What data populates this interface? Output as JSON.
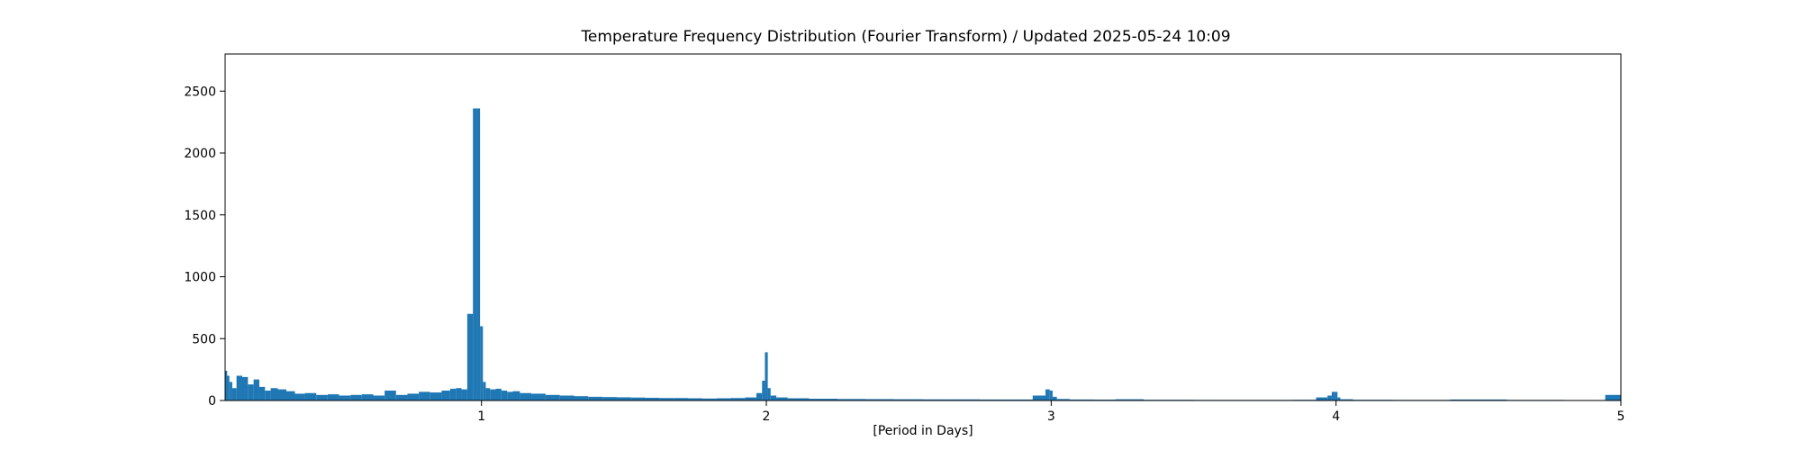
{
  "chart_data": {
    "type": "bar",
    "title": "Temperature Frequency Distribution (Fourier Transform) / Updated 2025-05-24 10:09",
    "xlabel": "[Period in Days]",
    "ylabel": "",
    "xlim": [
      0.1,
      5.0
    ],
    "ylim": [
      0,
      2800
    ],
    "x_ticks": [
      "1",
      "2",
      "3",
      "4",
      "5"
    ],
    "y_ticks": [
      "0",
      "500",
      "1000",
      "1500",
      "2000",
      "2500"
    ],
    "grid": false,
    "bar_color": "#1f77b4",
    "series": [
      {
        "x": [
          0.1,
          0.11,
          0.12,
          0.13,
          0.15,
          0.17,
          0.19,
          0.21,
          0.23,
          0.25,
          0.27,
          0.3,
          0.33,
          0.36,
          0.4,
          0.44,
          0.48,
          0.52,
          0.56,
          0.6,
          0.64,
          0.68,
          0.72,
          0.76,
          0.8,
          0.84,
          0.88,
          0.9,
          0.92,
          0.94,
          0.96,
          0.98,
          0.99,
          1.0,
          1.01,
          1.02,
          1.04,
          1.06,
          1.08,
          1.1,
          1.12,
          1.15,
          1.2,
          1.25,
          1.3,
          1.35,
          1.4,
          1.45,
          1.5,
          1.55,
          1.6,
          1.65,
          1.7,
          1.75,
          1.8,
          1.85,
          1.9,
          1.95,
          1.98,
          1.99,
          2.0,
          2.01,
          2.02,
          2.05,
          2.1,
          2.2,
          2.3,
          2.4,
          2.5,
          2.6,
          2.7,
          2.8,
          2.9,
          2.97,
          2.99,
          3.0,
          3.01,
          3.03,
          3.1,
          3.2,
          3.25,
          3.4,
          3.6,
          3.8,
          3.9,
          3.96,
          3.98,
          3.99,
          4.0,
          4.01,
          4.02,
          4.1,
          4.3,
          4.5,
          4.7,
          4.9,
          4.99
        ],
        "values": [
          240,
          200,
          150,
          100,
          200,
          190,
          130,
          170,
          110,
          80,
          100,
          90,
          75,
          55,
          60,
          45,
          50,
          40,
          45,
          50,
          40,
          80,
          45,
          55,
          70,
          65,
          80,
          95,
          100,
          90,
          700,
          2360,
          2360,
          600,
          150,
          100,
          90,
          95,
          80,
          70,
          75,
          60,
          55,
          45,
          40,
          35,
          30,
          28,
          26,
          24,
          22,
          20,
          20,
          18,
          16,
          18,
          20,
          25,
          60,
          160,
          390,
          100,
          40,
          25,
          18,
          14,
          12,
          11,
          10,
          9,
          9,
          8,
          8,
          40,
          90,
          80,
          30,
          12,
          8,
          7,
          10,
          6,
          5,
          5,
          6,
          25,
          40,
          70,
          70,
          25,
          10,
          6,
          5,
          8,
          5,
          4,
          45
        ]
      }
    ]
  }
}
